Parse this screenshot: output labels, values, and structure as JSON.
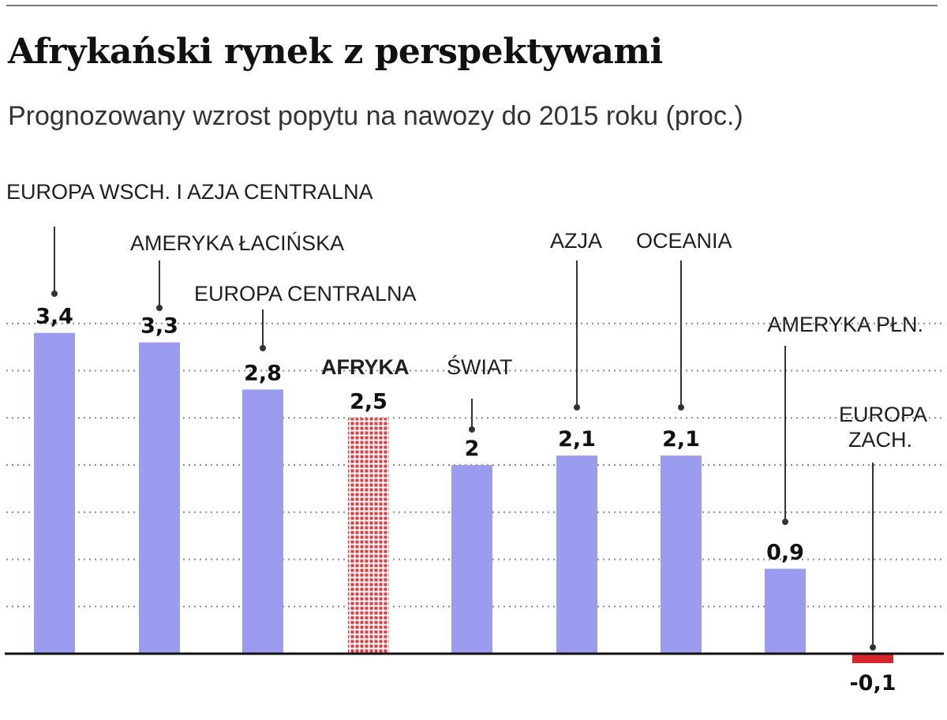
{
  "title": "Afrykański rynek z perspektywami",
  "subtitle": "Prognozowany wzrost popytu na nawozy do 2015 roku (proc.)",
  "colors": {
    "bar": "#9b9cf0",
    "highlight": "#e0393d",
    "negative": "#d8272b",
    "grid": "#8a8a8a",
    "axis": "#111111"
  },
  "chart_data": {
    "type": "bar",
    "title": "Afrykański rynek z perspektywami",
    "subtitle": "Prognozowany wzrost popytu na nawozy do 2015 roku (proc.)",
    "categories": [
      "EUROPA WSCH. I AZJA CENTRALNA",
      "AMERYKA ŁACIŃSKA",
      "EUROPA CENTRALNA",
      "AFRYKA",
      "ŚWIAT",
      "AZJA",
      "OCEANIA",
      "AMERYKA PŁN.",
      "EUROPA ZACH."
    ],
    "values": [
      3.4,
      3.3,
      2.8,
      2.5,
      2,
      2.1,
      2.1,
      0.9,
      -0.1
    ],
    "value_labels": [
      "3,4",
      "3,3",
      "2,8",
      "2,5",
      "2",
      "2,1",
      "2,1",
      "0,9",
      "-0,1"
    ],
    "highlight": "AFRYKA",
    "ylim": [
      -0.1,
      3.5
    ],
    "grid": "dotted-horizontal",
    "legend": "none"
  }
}
